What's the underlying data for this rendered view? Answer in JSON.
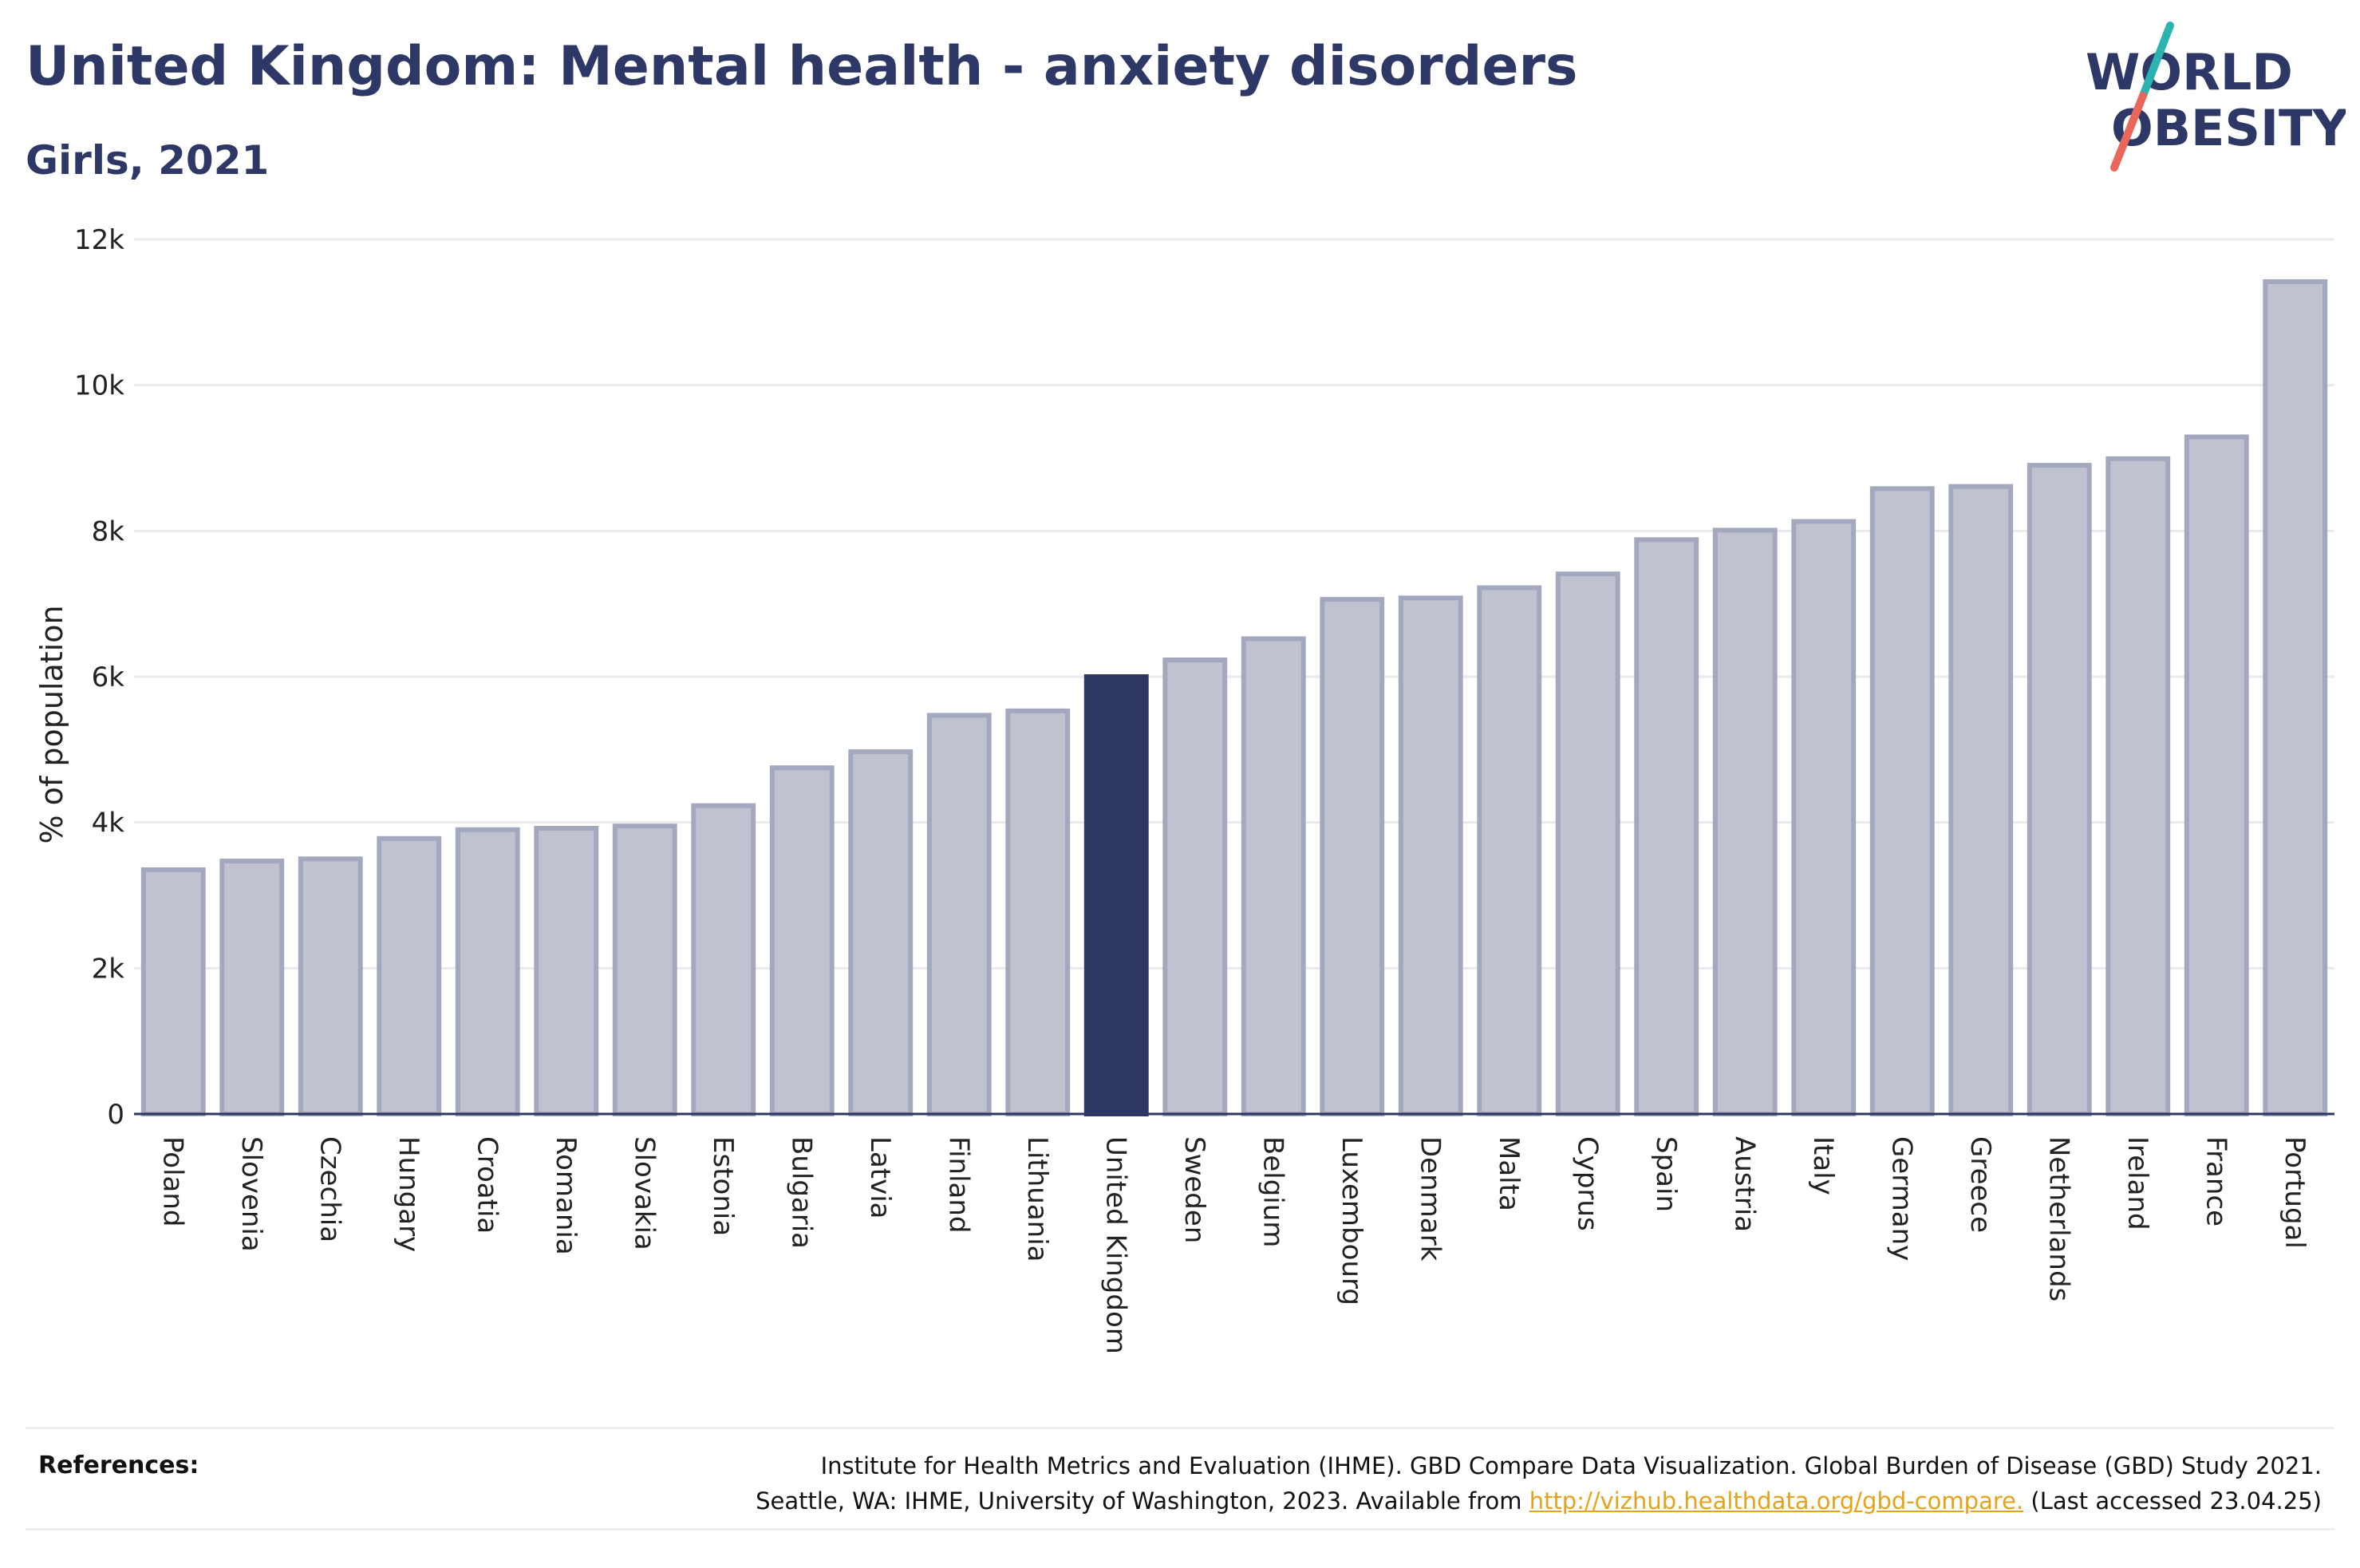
{
  "header": {
    "title": "United Kingdom: Mental health - anxiety disorders",
    "subtitle": "Girls, 2021"
  },
  "logo": {
    "line1": "WORLD",
    "line2": "OBESITY",
    "colors": {
      "text": "#2d3867",
      "slash_top": "#2ab3b1",
      "slash_bottom": "#e8675a"
    }
  },
  "references": {
    "label": "References:",
    "line1": "Institute for Health Metrics and Evaluation (IHME). GBD Compare Data Visualization. Global Burden of Disease (GBD) Study 2021.",
    "line2_prefix": "Seattle, WA: IHME, University of Washington, 2023. Available from ",
    "link_text": "http://vizhub.healthdata.org/gbd-compare.",
    "line2_suffix": " (Last accessed 23.04.25)"
  },
  "colors": {
    "bar_fill": "#bfc3d0",
    "bar_stroke": "#a3a8bf",
    "highlight_fill": "#2d3761",
    "gridline": "#e9e9ee",
    "axis_line": "#2d3761"
  },
  "chart_data": {
    "type": "bar",
    "ylabel": "% of population",
    "ylim": [
      0,
      12000
    ],
    "yticks": [
      0,
      2000,
      4000,
      6000,
      8000,
      10000,
      12000
    ],
    "ytick_labels": [
      "0",
      "2k",
      "4k",
      "6k",
      "8k",
      "10k",
      "12k"
    ],
    "grid": true,
    "highlight": "United Kingdom",
    "categories": [
      "Poland",
      "Slovenia",
      "Czechia",
      "Hungary",
      "Croatia",
      "Romania",
      "Slovakia",
      "Estonia",
      "Bulgaria",
      "Latvia",
      "Finland",
      "Lithuania",
      "United Kingdom",
      "Sweden",
      "Belgium",
      "Luxembourg",
      "Denmark",
      "Malta",
      "Cyprus",
      "Spain",
      "Austria",
      "Italy",
      "Germany",
      "Greece",
      "Netherlands",
      "Ireland",
      "France",
      "Portugal"
    ],
    "values": [
      3350,
      3470,
      3500,
      3780,
      3900,
      3920,
      3950,
      4230,
      4750,
      4970,
      5470,
      5530,
      6000,
      6230,
      6520,
      7060,
      7080,
      7220,
      7410,
      7880,
      8010,
      8130,
      8580,
      8610,
      8900,
      8990,
      9290,
      11420
    ]
  }
}
